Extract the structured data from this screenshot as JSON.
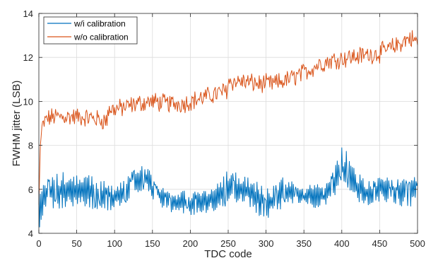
{
  "chart_data": {
    "type": "line",
    "title": "",
    "xlabel": "TDC code",
    "ylabel": "FWHM jitter (LSB)",
    "xlim": [
      0,
      500
    ],
    "ylim": [
      4,
      14
    ],
    "xticks": [
      0,
      50,
      100,
      150,
      200,
      250,
      300,
      350,
      400,
      450,
      500
    ],
    "yticks": [
      4,
      6,
      8,
      10,
      12,
      14
    ],
    "grid": true,
    "legend": {
      "position": "top-left",
      "entries": [
        "w/i calibration",
        "w/o calibration"
      ]
    },
    "series": [
      {
        "name": "w/i calibration",
        "color": "#0072BD",
        "style": "dense noisy line, alternating roughly between the low and high envelope",
        "envelope_x": [
          0,
          10,
          20,
          30,
          40,
          50,
          60,
          70,
          80,
          90,
          100,
          110,
          120,
          130,
          140,
          150,
          160,
          170,
          180,
          190,
          200,
          210,
          220,
          230,
          240,
          250,
          260,
          270,
          280,
          290,
          300,
          310,
          320,
          330,
          340,
          350,
          360,
          370,
          380,
          390,
          400,
          410,
          420,
          430,
          440,
          450,
          460,
          470,
          480,
          490,
          500
        ],
        "envelope_low": [
          4.0,
          5.2,
          5.0,
          5.1,
          5.0,
          5.3,
          5.2,
          5.1,
          5.0,
          5.0,
          5.1,
          5.3,
          5.5,
          5.8,
          6.0,
          5.5,
          5.2,
          5.0,
          4.9,
          4.8,
          4.8,
          4.8,
          4.9,
          5.0,
          5.1,
          5.3,
          5.4,
          5.2,
          5.0,
          4.8,
          4.6,
          4.7,
          5.0,
          5.3,
          5.4,
          5.3,
          5.2,
          5.1,
          5.2,
          5.6,
          6.2,
          6.0,
          5.4,
          5.2,
          5.3,
          5.4,
          5.3,
          5.3,
          5.2,
          5.2,
          5.3
        ],
        "envelope_high": [
          6.0,
          6.5,
          6.8,
          6.9,
          6.8,
          6.7,
          6.6,
          6.7,
          6.6,
          6.3,
          6.1,
          6.4,
          6.8,
          7.0,
          7.1,
          6.7,
          6.2,
          5.9,
          5.8,
          6.0,
          5.9,
          5.9,
          6.0,
          6.2,
          6.5,
          6.9,
          6.9,
          6.8,
          6.6,
          6.3,
          6.0,
          6.3,
          6.6,
          6.5,
          6.2,
          6.0,
          6.5,
          6.2,
          6.3,
          7.0,
          8.0,
          7.6,
          6.8,
          6.5,
          6.4,
          6.6,
          6.6,
          6.5,
          6.6,
          6.5,
          6.6
        ]
      },
      {
        "name": "w/o calibration",
        "color": "#D95319",
        "style": "noisy line with trend, noise band roughly +/-0.35 LSB",
        "trend_x": [
          0,
          2,
          4,
          10,
          20,
          30,
          50,
          70,
          90,
          91,
          110,
          130,
          150,
          170,
          190,
          210,
          230,
          248,
          250,
          270,
          290,
          310,
          330,
          350,
          370,
          390,
          410,
          430,
          450,
          470,
          490,
          500
        ],
        "trend_y": [
          5.3,
          8.0,
          8.8,
          9.2,
          9.3,
          9.3,
          9.3,
          9.25,
          9.1,
          9.6,
          9.7,
          9.9,
          10.0,
          9.9,
          9.9,
          10.1,
          10.3,
          10.5,
          10.9,
          10.9,
          10.8,
          10.8,
          11.0,
          11.3,
          11.7,
          11.9,
          12.0,
          12.1,
          12.2,
          12.5,
          12.9,
          12.7
        ]
      }
    ]
  }
}
